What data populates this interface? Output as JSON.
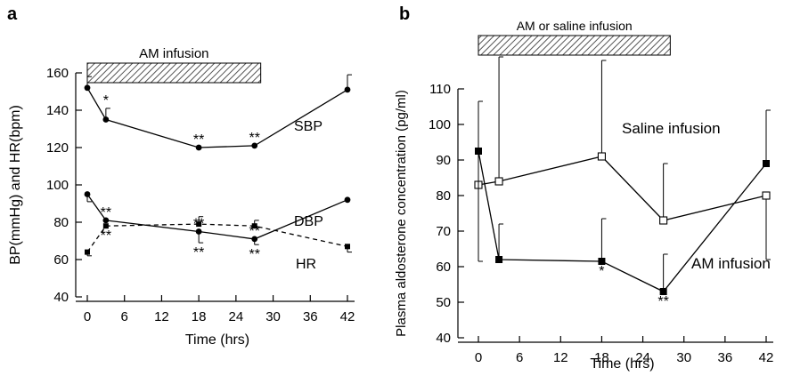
{
  "chart_data": [
    {
      "panel_label": "a",
      "type": "line",
      "xlabel": "Time (hrs)",
      "ylabel": "BP(mmHg) and HR(bpm)",
      "xlim": [
        0,
        42
      ],
      "ylim": [
        40,
        160
      ],
      "x_ticks": [
        "0",
        "6",
        "12",
        "18",
        "24",
        "30",
        "36",
        "42"
      ],
      "y_ticks": [
        "40",
        "60",
        "80",
        "100",
        "120",
        "140",
        "160"
      ],
      "bar_label": "AM infusion",
      "bar_range": [
        0,
        28
      ],
      "series": [
        {
          "name": "SBP",
          "marker": "circle",
          "dashed": false,
          "x": [
            0,
            3,
            18,
            27,
            42
          ],
          "y": [
            152,
            135,
            120,
            121,
            151
          ],
          "err_up": [
            6,
            6,
            0,
            0,
            8
          ],
          "annotations": [
            {
              "x": 3,
              "side": "above",
              "text": "*"
            },
            {
              "x": 18,
              "side": "above",
              "text": "**"
            },
            {
              "x": 27,
              "side": "above",
              "text": "**"
            }
          ]
        },
        {
          "name": "DBP",
          "marker": "circle",
          "dashed": false,
          "x": [
            0,
            3,
            18,
            27,
            42
          ],
          "y": [
            95,
            81,
            75,
            71,
            92
          ],
          "err_up": [
            0,
            0,
            0,
            0,
            0
          ],
          "err_down": [
            4,
            0,
            6,
            3,
            0
          ],
          "annotations": [
            {
              "x": 3,
              "side": "above",
              "text": "**"
            },
            {
              "x": 18,
              "side": "above",
              "text": "**"
            },
            {
              "x": 27,
              "side": "above",
              "text": "**"
            },
            {
              "x": 18,
              "side": "below",
              "text": "**"
            },
            {
              "x": 27,
              "side": "below",
              "text": "**"
            }
          ]
        },
        {
          "name": "HR",
          "marker": "square",
          "dashed": true,
          "x": [
            0,
            3,
            18,
            27,
            42
          ],
          "y": [
            64,
            78,
            79,
            78,
            67
          ],
          "err_up": [
            0,
            0,
            4,
            3,
            0
          ],
          "err_down": [
            2,
            0,
            0,
            0,
            3
          ],
          "annotations": [
            {
              "x": 3,
              "side": "below",
              "text": "**"
            }
          ]
        }
      ]
    },
    {
      "panel_label": "b",
      "type": "line",
      "xlabel": "Time (hrs)",
      "ylabel": "Plasma aldosterone concentration (pg/ml)",
      "xlim": [
        0,
        42
      ],
      "ylim": [
        40,
        110
      ],
      "x_ticks": [
        "0",
        "6",
        "12",
        "18",
        "24",
        "30",
        "36",
        "42"
      ],
      "y_ticks": [
        "40",
        "50",
        "60",
        "70",
        "80",
        "90",
        "100",
        "110"
      ],
      "bar_label": "AM or saline infusion",
      "bar_range": [
        0,
        28
      ],
      "series": [
        {
          "name": "Saline infusion",
          "marker": "open-square",
          "dashed": false,
          "x": [
            0,
            3,
            18,
            27,
            42
          ],
          "y": [
            83,
            84,
            91,
            73,
            80
          ],
          "err_up": [
            0,
            35,
            27,
            16,
            0
          ],
          "err_down": [
            0,
            0,
            0,
            0,
            18
          ]
        },
        {
          "name": "AM infusion",
          "marker": "square",
          "dashed": false,
          "x": [
            0,
            3,
            18,
            27,
            42
          ],
          "y": [
            92.5,
            62,
            61.5,
            53,
            89
          ],
          "err_up": [
            14,
            10,
            12,
            10.5,
            15
          ],
          "err_down": [
            31,
            0,
            0,
            0,
            0
          ],
          "annotations": [
            {
              "x": 18,
              "side": "below",
              "text": "*"
            },
            {
              "x": 27,
              "side": "below",
              "text": "**"
            }
          ]
        }
      ]
    }
  ]
}
